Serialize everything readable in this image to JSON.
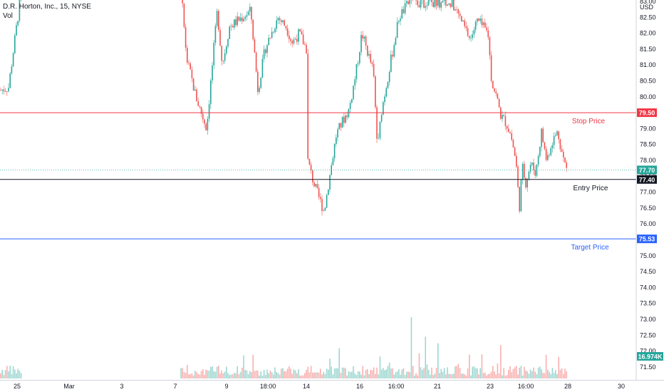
{
  "legend": {
    "symbol_line": "D.R. Horton, Inc., 15, NYSE",
    "volume_label": "Vol"
  },
  "currency": "USD",
  "colors": {
    "up": "#26a69a",
    "down": "#ef5350",
    "stop": "#f23645",
    "target": "#2962ff",
    "entry": "#131722"
  },
  "chart_data": {
    "type": "candlestick",
    "ylim": [
      71.2,
      83.2
    ],
    "y_ticks": [
      "83.00",
      "82.50",
      "82.00",
      "81.50",
      "81.00",
      "80.50",
      "80.00",
      "79.50",
      "79.00",
      "78.50",
      "78.00",
      "77.50",
      "77.00",
      "76.50",
      "76.00",
      "75.50",
      "75.00",
      "74.50",
      "74.00",
      "73.50",
      "73.00",
      "72.50",
      "72.00",
      "71.50"
    ],
    "x_ticks": [
      "25",
      "Mar",
      "3",
      "7",
      "9",
      "18:00",
      "14",
      "16",
      "16:00",
      "21",
      "23",
      "16:00",
      "28",
      "30"
    ],
    "horizontal_lines": [
      {
        "name": "stop",
        "label": "Stop Price",
        "value": 79.5,
        "badge": "79.50"
      },
      {
        "name": "entry",
        "label": "Entry Price",
        "value": 77.4,
        "badge": "77.40"
      },
      {
        "name": "target",
        "label": "Target Price",
        "value": 75.53,
        "badge": "75.53"
      }
    ],
    "last_price": {
      "value": 77.7,
      "badge": "77.70"
    },
    "last_volume": {
      "badge": "16.974K"
    },
    "series_path": [
      [
        0,
        80.2
      ],
      [
        12,
        80.3
      ],
      [
        22,
        82.0
      ],
      [
        28,
        83.0
      ],
      [
        255,
        83.1
      ],
      [
        262,
        81.2
      ],
      [
        275,
        80.0
      ],
      [
        290,
        79.0
      ],
      [
        296,
        80.5
      ],
      [
        305,
        82.7
      ],
      [
        312,
        81.0
      ],
      [
        322,
        82.2
      ],
      [
        352,
        82.7
      ],
      [
        362,
        80.2
      ],
      [
        372,
        81.5
      ],
      [
        390,
        82.5
      ],
      [
        402,
        82.2
      ],
      [
        410,
        81.7
      ],
      [
        420,
        82.0
      ],
      [
        430,
        81.5
      ],
      [
        432,
        78.0
      ],
      [
        440,
        77.3
      ],
      [
        448,
        76.8
      ],
      [
        455,
        76.4
      ],
      [
        462,
        77.4
      ],
      [
        472,
        78.8
      ],
      [
        480,
        79.2
      ],
      [
        490,
        79.6
      ],
      [
        500,
        80.8
      ],
      [
        508,
        82.0
      ],
      [
        516,
        81.4
      ],
      [
        524,
        80.8
      ],
      [
        530,
        78.3
      ],
      [
        535,
        79.5
      ],
      [
        545,
        80.7
      ],
      [
        560,
        82.5
      ],
      [
        575,
        83.0
      ],
      [
        635,
        82.9
      ],
      [
        645,
        82.5
      ],
      [
        660,
        81.8
      ],
      [
        670,
        82.4
      ],
      [
        685,
        82.0
      ],
      [
        690,
        80.5
      ],
      [
        697,
        80.0
      ],
      [
        703,
        79.4
      ],
      [
        710,
        79.2
      ],
      [
        717,
        78.8
      ],
      [
        724,
        78.0
      ],
      [
        729,
        76.5
      ],
      [
        733,
        77.8
      ],
      [
        738,
        77.3
      ],
      [
        745,
        77.9
      ],
      [
        752,
        77.6
      ],
      [
        760,
        78.9
      ],
      [
        767,
        78.0
      ],
      [
        775,
        78.6
      ],
      [
        783,
        78.9
      ],
      [
        790,
        78.1
      ],
      [
        797,
        77.6
      ]
    ]
  }
}
